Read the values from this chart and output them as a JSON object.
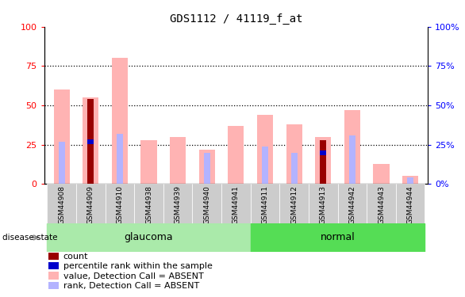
{
  "title": "GDS1112 / 41119_f_at",
  "samples": [
    "GSM44908",
    "GSM44909",
    "GSM44910",
    "GSM44938",
    "GSM44939",
    "GSM44940",
    "GSM44941",
    "GSM44911",
    "GSM44912",
    "GSM44913",
    "GSM44942",
    "GSM44943",
    "GSM44944"
  ],
  "glaucoma_samples": [
    "GSM44908",
    "GSM44909",
    "GSM44910",
    "GSM44938",
    "GSM44939",
    "GSM44940",
    "GSM44941"
  ],
  "normal_samples": [
    "GSM44911",
    "GSM44912",
    "GSM44913",
    "GSM44942",
    "GSM44943",
    "GSM44944"
  ],
  "value_absent": [
    60,
    55,
    80,
    28,
    30,
    22,
    37,
    44,
    38,
    30,
    47,
    13,
    5
  ],
  "rank_absent": [
    27,
    0,
    32,
    0,
    0,
    20,
    0,
    24,
    20,
    0,
    31,
    0,
    4
  ],
  "count": [
    0,
    54,
    0,
    0,
    0,
    0,
    0,
    0,
    0,
    28,
    0,
    0,
    0
  ],
  "percentile": [
    0,
    27,
    0,
    0,
    0,
    0,
    0,
    0,
    0,
    20,
    0,
    0,
    0
  ],
  "yticks": [
    0,
    25,
    50,
    75,
    100
  ],
  "color_value_absent": "#ffb3b3",
  "color_rank_absent": "#b3b3ff",
  "color_count": "#990000",
  "color_percentile": "#0000cc",
  "color_glaucoma_bg": "#aaeaaa",
  "color_normal_bg": "#55dd55",
  "legend_items": [
    {
      "label": "count",
      "color": "#990000"
    },
    {
      "label": "percentile rank within the sample",
      "color": "#0000cc"
    },
    {
      "label": "value, Detection Call = ABSENT",
      "color": "#ffb3b3"
    },
    {
      "label": "rank, Detection Call = ABSENT",
      "color": "#b3b3ff"
    }
  ]
}
